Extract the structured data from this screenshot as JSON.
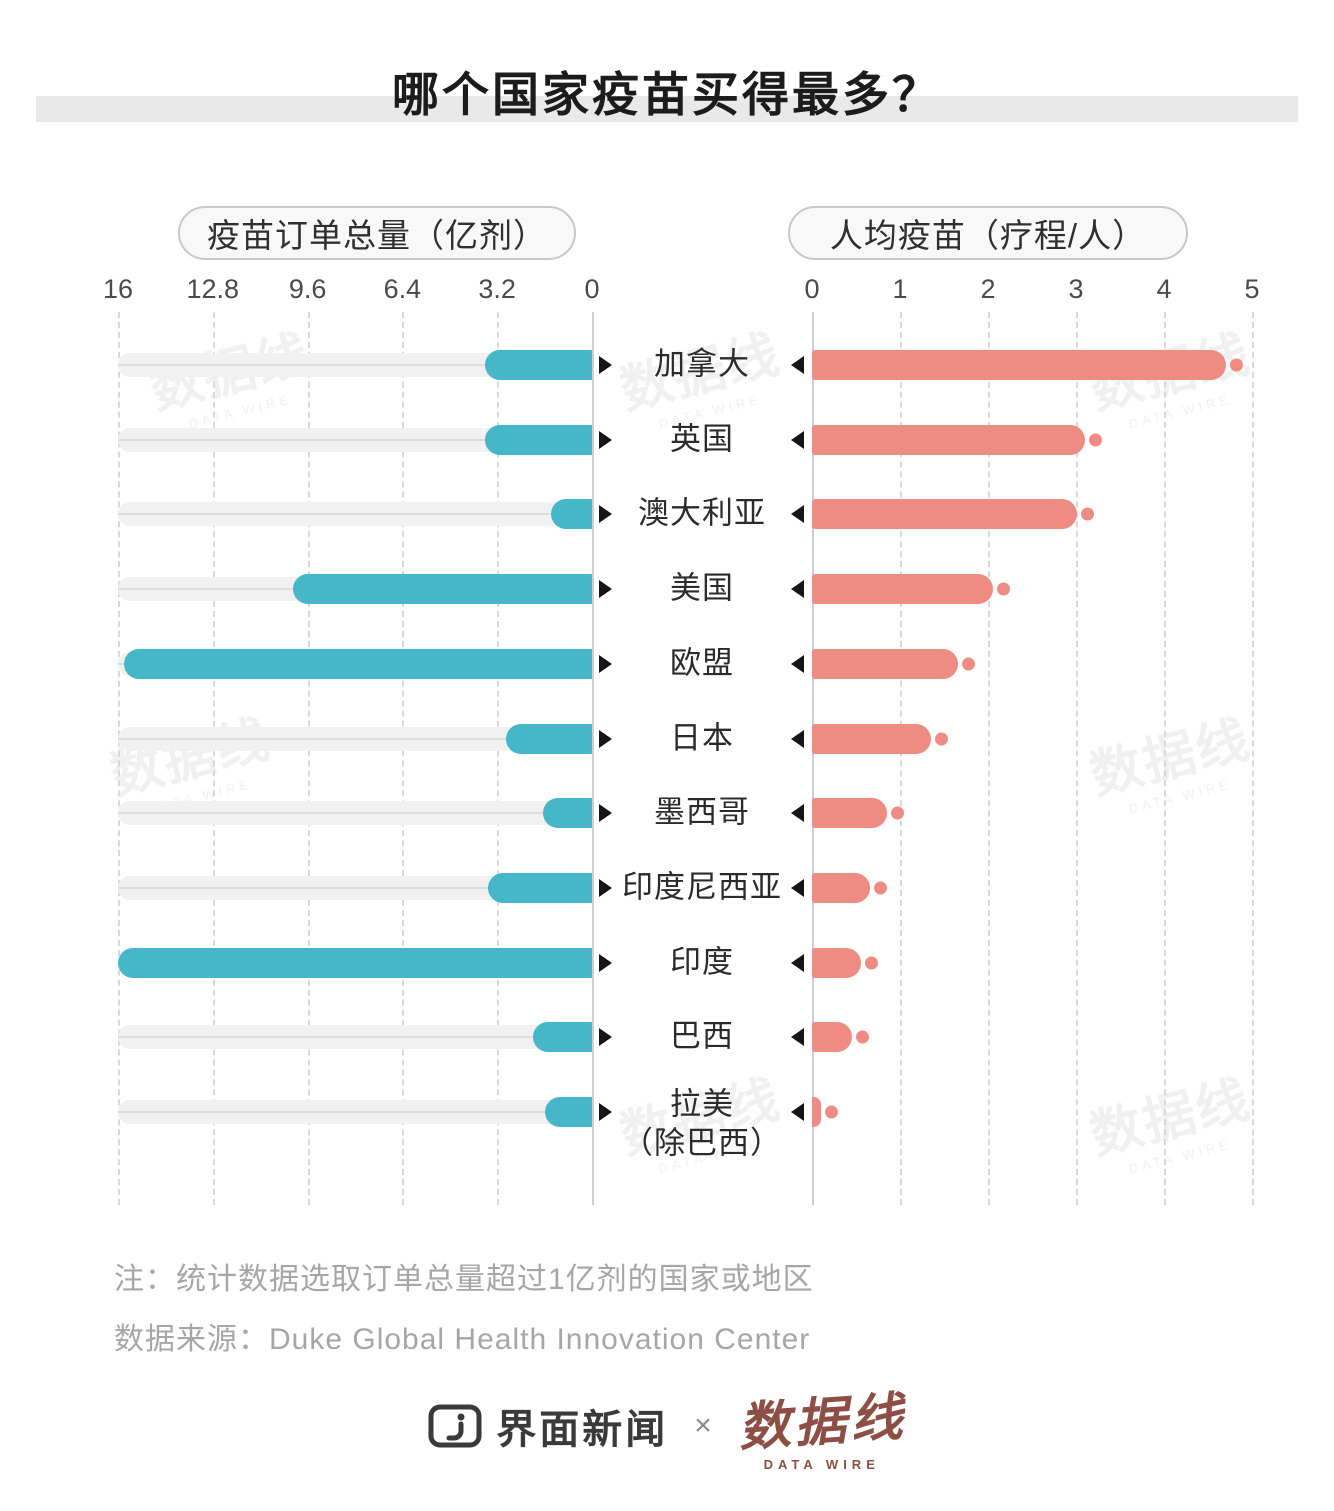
{
  "title": "哪个国家疫苗买得最多？",
  "left_chart": {
    "header": "疫苗订单总量（亿剂）"
  },
  "right_chart": {
    "header": "人均疫苗（疗程/人）"
  },
  "notes": {
    "line1": "注：统计数据选取订单总量超过1亿剂的国家或地区",
    "line2": "数据来源：Duke Global Health Innovation Center"
  },
  "footer": {
    "jiemian": "界面新闻",
    "separator": "×",
    "datawire": "数据线",
    "datawire_sub": "DATA WIRE"
  },
  "watermark": {
    "text": "数据线",
    "sub": "DATA WIRE"
  },
  "colors": {
    "teal": "#45b7c8",
    "pink": "#ee8c83",
    "datawire_red": "#8d4f45",
    "title_band": "#e9e9e9"
  },
  "chart_data": {
    "type": "bar",
    "layout": "bidirectional-horizontal",
    "title": "哪个国家疫苗买得最多？",
    "grid": "dashed-vertical",
    "categories": [
      "加拿大",
      "英国",
      "澳大利亚",
      "美国",
      "欧盟",
      "日本",
      "墨西哥",
      "印度尼西亚",
      "印度",
      "巴西",
      "拉美（除巴西）"
    ],
    "categories_display": [
      [
        "加拿大"
      ],
      [
        "英国"
      ],
      [
        "澳大利亚"
      ],
      [
        "美国"
      ],
      [
        "欧盟"
      ],
      [
        "日本"
      ],
      [
        "墨西哥"
      ],
      [
        "印度尼西亚"
      ],
      [
        "印度"
      ],
      [
        "巴西"
      ],
      [
        "拉美",
        "（除巴西）"
      ]
    ],
    "series": [
      {
        "name": "疫苗订单总量（亿剂）",
        "direction": "left",
        "max": 16,
        "ticks": [
          16,
          12.8,
          9.6,
          6.4,
          3.2,
          0
        ],
        "values": [
          3.6,
          3.6,
          1.4,
          10.1,
          15.8,
          2.9,
          1.65,
          3.5,
          16,
          2.0,
          1.6
        ]
      },
      {
        "name": "人均疫苗（疗程/人）",
        "direction": "right",
        "max": 5,
        "ticks": [
          0,
          1,
          2,
          3,
          4,
          5
        ],
        "values": [
          4.9,
          3.3,
          3.2,
          2.25,
          1.85,
          1.55,
          1.05,
          0.85,
          0.75,
          0.65,
          0.3
        ]
      }
    ],
    "note": "注：统计数据选取订单总量超过1亿剂的国家或地区",
    "source": "Duke Global Health Innovation Center"
  }
}
